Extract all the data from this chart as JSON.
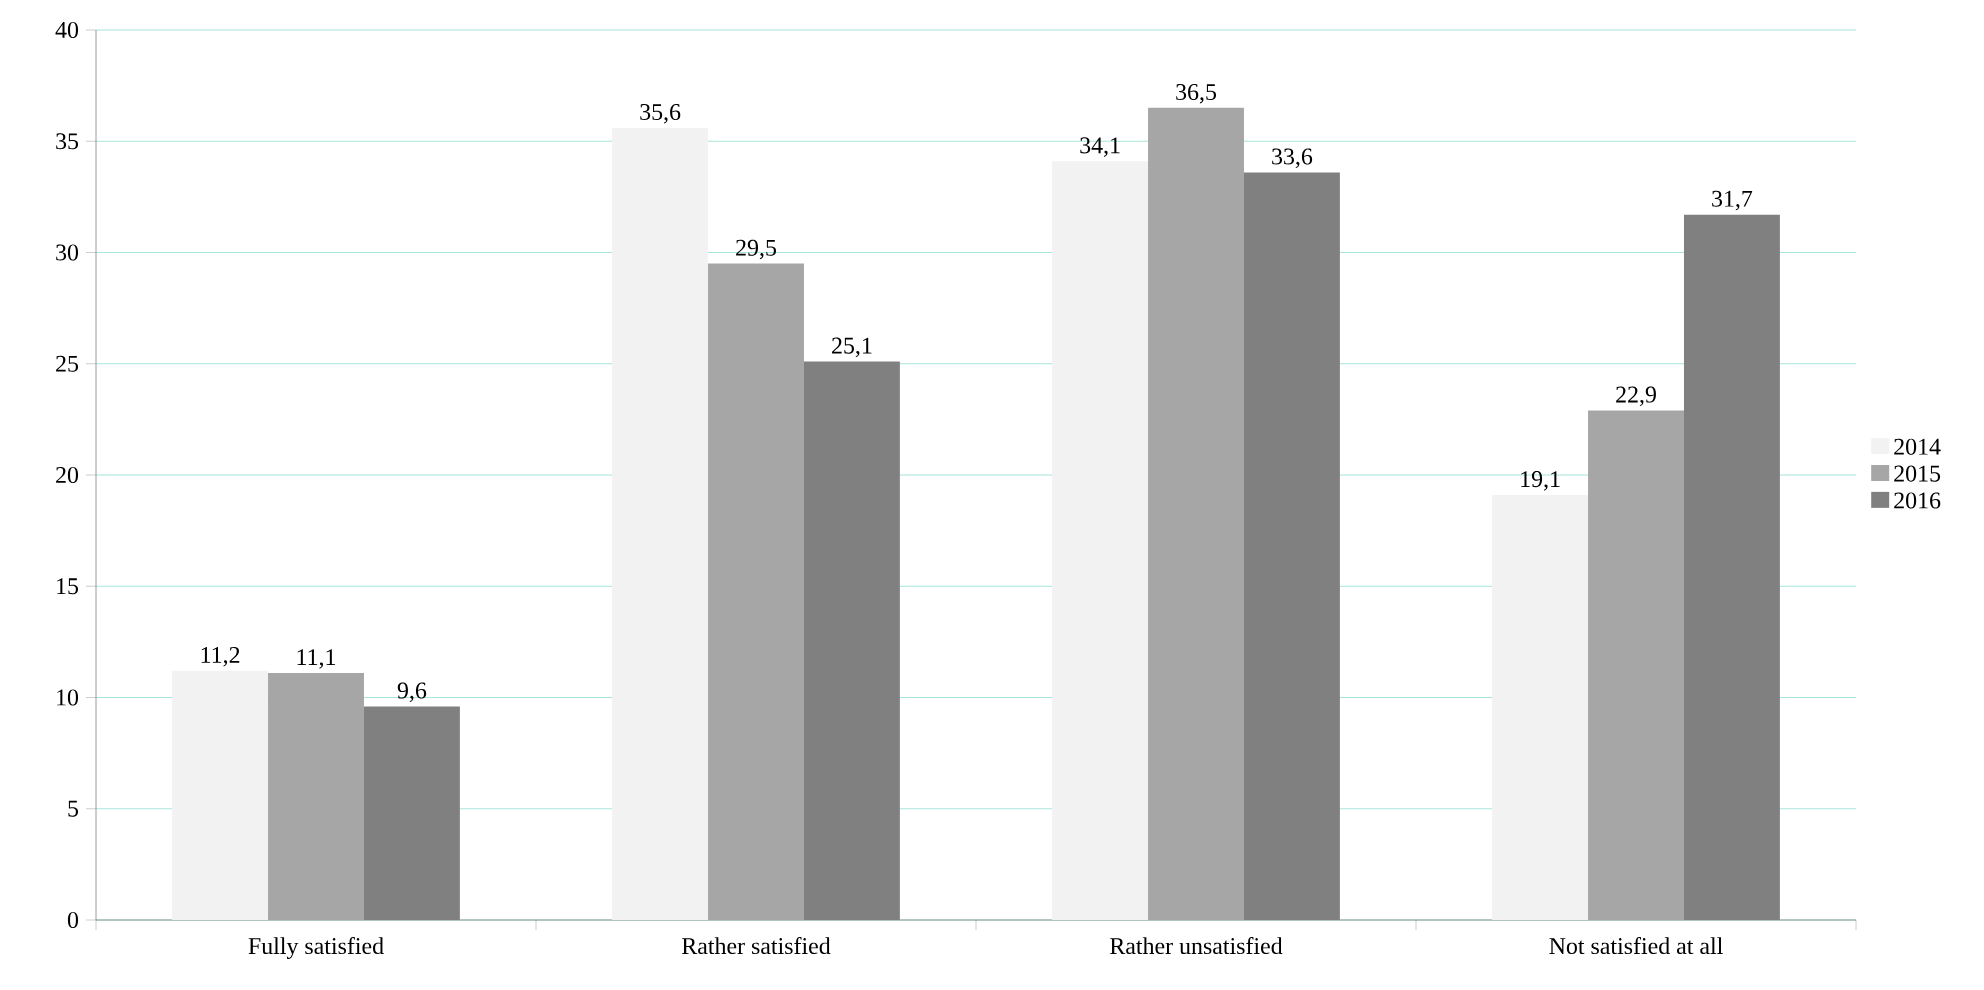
{
  "chart_data": {
    "type": "bar",
    "categories": [
      "Fully satisfied",
      "Rather satisfied",
      "Rather unsatisfied",
      "Not satisfied at all"
    ],
    "series": [
      {
        "name": "2014",
        "color": "#f2f2f2",
        "values": [
          11.2,
          35.6,
          34.1,
          19.1
        ],
        "value_labels": [
          "11,2",
          "35,6",
          "34,1",
          "19,1"
        ]
      },
      {
        "name": "2015",
        "color": "#a6a6a6",
        "values": [
          11.1,
          29.5,
          36.5,
          22.9
        ],
        "value_labels": [
          "11,1",
          "29,5",
          "36,5",
          "22,9"
        ]
      },
      {
        "name": "2016",
        "color": "#808080",
        "values": [
          9.6,
          25.1,
          33.6,
          31.7
        ],
        "value_labels": [
          "9,6",
          "25,1",
          "33,6",
          "31,7"
        ]
      }
    ],
    "ylim": [
      0,
      40
    ],
    "yticks": [
      0,
      5,
      10,
      15,
      20,
      25,
      30,
      35,
      40
    ],
    "grid": "y",
    "legend": "right"
  }
}
